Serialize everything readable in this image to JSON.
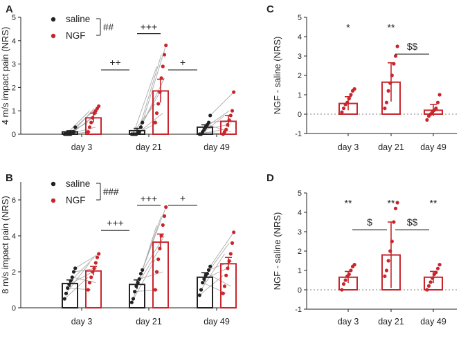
{
  "colors": {
    "saline": "#222222",
    "ngf": "#c8262c",
    "zero_line": "#999999",
    "connector": "#aaaaaa"
  },
  "chart_data": [
    {
      "panel": "A",
      "type": "bar",
      "ylabel": "4 m/s impact pain (NRS)",
      "ylim": [
        0,
        5
      ],
      "yticks": [
        "0",
        "1",
        "2",
        "3",
        "4",
        "5"
      ],
      "categories": [
        "day 3",
        "day 21",
        "day 49"
      ],
      "legend": {
        "series": [
          "saline",
          "NGF"
        ],
        "marker": "##"
      },
      "series": [
        {
          "name": "saline",
          "values": [
            0.1,
            0.15,
            0.3
          ],
          "errors": [
            0.05,
            0.1,
            0.1
          ],
          "points": [
            [
              0,
              0,
              0,
              0,
              0,
              0.05,
              0.1,
              0.3
            ],
            [
              0,
              0,
              0,
              0,
              0.05,
              0.1,
              0.3,
              0.5
            ],
            [
              0,
              0,
              0.1,
              0.2,
              0.3,
              0.4,
              0.5,
              0.8
            ]
          ]
        },
        {
          "name": "NGF",
          "values": [
            0.7,
            1.85,
            0.55
          ],
          "errors": [
            0.2,
            0.5,
            0.25
          ],
          "points": [
            [
              0.1,
              0.3,
              0.5,
              0.7,
              0.9,
              1.0,
              1.1,
              1.2
            ],
            [
              0.5,
              0.9,
              1.3,
              1.8,
              2.4,
              2.9,
              3.4,
              3.8
            ],
            [
              0,
              0.1,
              0.2,
              0.4,
              0.6,
              0.8,
              1.0,
              1.8
            ]
          ]
        }
      ],
      "annotations": [
        {
          "text": "+++",
          "from": 1,
          "to": 1,
          "y": 4.3,
          "mode": "within"
        },
        {
          "text": "++",
          "from": 0,
          "to": 1,
          "y": 2.75,
          "mode": "between"
        },
        {
          "text": "+",
          "from": 1,
          "to": 2,
          "y": 2.75,
          "mode": "between"
        }
      ]
    },
    {
      "panel": "B",
      "type": "bar",
      "ylabel": "8 m/s impact pain (NRS)",
      "ylim": [
        0,
        7
      ],
      "yticks": [
        "0",
        "2",
        "4",
        "6"
      ],
      "categories": [
        "day 3",
        "day 21",
        "day 49"
      ],
      "legend": {
        "series": [
          "saline",
          "NGF"
        ],
        "marker": "###"
      },
      "series": [
        {
          "name": "saline",
          "values": [
            1.35,
            1.3,
            1.7
          ],
          "errors": [
            0.2,
            0.25,
            0.25
          ],
          "points": [
            [
              0.5,
              0.8,
              1.1,
              1.3,
              1.5,
              1.7,
              2.0,
              2.2
            ],
            [
              0.3,
              0.5,
              0.9,
              1.2,
              1.4,
              1.6,
              1.9,
              2.1
            ],
            [
              0.7,
              1.0,
              1.4,
              1.6,
              1.8,
              1.9,
              2.1,
              2.3
            ]
          ]
        },
        {
          "name": "NGF",
          "values": [
            2.05,
            3.65,
            2.45
          ],
          "errors": [
            0.25,
            0.45,
            0.35
          ],
          "points": [
            [
              1.0,
              1.4,
              1.7,
              2.0,
              2.2,
              2.5,
              2.8,
              3.0
            ],
            [
              1.0,
              2.0,
              2.7,
              3.3,
              4.0,
              4.6,
              5.1,
              5.6
            ],
            [
              0.8,
              1.2,
              1.8,
              2.2,
              2.6,
              3.0,
              3.6,
              4.2
            ]
          ]
        }
      ],
      "annotations": [
        {
          "text": "+++",
          "from": 1,
          "to": 1,
          "y": 5.7,
          "mode": "within"
        },
        {
          "text": "+++",
          "from": 0,
          "to": 1,
          "y": 4.3,
          "mode": "between"
        },
        {
          "text": "+",
          "from": 1,
          "to": 2,
          "y": 5.7,
          "mode": "between"
        }
      ]
    },
    {
      "panel": "C",
      "type": "bar",
      "ylabel": "NGF - saline  (NRS)",
      "ylim": [
        -1,
        5
      ],
      "yticks": [
        "-1",
        "0",
        "1",
        "2",
        "3",
        "4",
        "5"
      ],
      "categories": [
        "day 3",
        "day 21",
        "day 49"
      ],
      "values": [
        0.55,
        1.65,
        0.2
      ],
      "errors": [
        0.35,
        1.0,
        0.3
      ],
      "points": [
        [
          0.1,
          0.3,
          0.5,
          0.6,
          0.8,
          1.0,
          1.2,
          1.3
        ],
        [
          0.3,
          0.6,
          1.2,
          1.6,
          2.0,
          2.6,
          3.0,
          3.5
        ],
        [
          -0.3,
          -0.1,
          0.0,
          0.1,
          0.2,
          0.3,
          0.6,
          1.0
        ]
      ],
      "annotations": [
        {
          "text": "*",
          "from": 0,
          "to": 0,
          "y": 4.3,
          "mode": "star"
        },
        {
          "text": "**",
          "from": 1,
          "to": 1,
          "y": 4.3,
          "mode": "star"
        },
        {
          "text": "$$",
          "from": 1,
          "to": 2,
          "y": 3.1,
          "mode": "line"
        }
      ]
    },
    {
      "panel": "D",
      "type": "bar",
      "ylabel": "NGF - saline  (NRS)",
      "ylim": [
        -1,
        5
      ],
      "yticks": [
        "-1",
        "0",
        "1",
        "2",
        "3",
        "4",
        "5"
      ],
      "categories": [
        "day 3",
        "day 21",
        "day 49"
      ],
      "values": [
        0.65,
        1.8,
        0.65
      ],
      "errors": [
        0.3,
        1.7,
        0.3
      ],
      "points": [
        [
          0.0,
          0.3,
          0.5,
          0.7,
          0.8,
          1.0,
          1.2,
          1.3
        ],
        [
          0.7,
          1.0,
          1.5,
          2.0,
          2.5,
          3.5,
          4.2,
          4.5
        ],
        [
          0.0,
          0.2,
          0.4,
          0.6,
          0.8,
          0.9,
          1.1,
          1.3
        ]
      ],
      "annotations": [
        {
          "text": "**",
          "from": 0,
          "to": 0,
          "y": 4.3,
          "mode": "star"
        },
        {
          "text": "**",
          "from": 1,
          "to": 1,
          "y": 4.3,
          "mode": "star"
        },
        {
          "text": "**",
          "from": 2,
          "to": 2,
          "y": 4.3,
          "mode": "star"
        },
        {
          "text": "$",
          "from": 0,
          "to": 1,
          "y": 3.1,
          "mode": "line"
        },
        {
          "text": "$$",
          "from": 1,
          "to": 2,
          "y": 3.1,
          "mode": "line"
        }
      ]
    }
  ]
}
